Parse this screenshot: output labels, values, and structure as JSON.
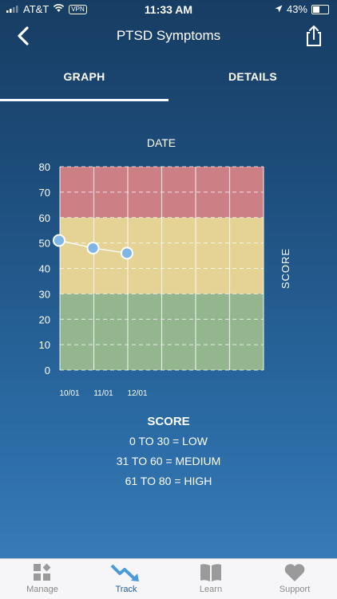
{
  "status": {
    "carrier": "AT&T",
    "vpn": "VPN",
    "time": "11:33 AM",
    "battery": "43%"
  },
  "header": {
    "title": "PTSD Symptoms"
  },
  "tabs": [
    {
      "label": "GRAPH",
      "active": true
    },
    {
      "label": "DETAILS",
      "active": false
    }
  ],
  "chart_data": {
    "type": "line",
    "title": "DATE",
    "ylabel": "SCORE",
    "ylim": [
      0,
      80
    ],
    "yticks": [
      0,
      10,
      20,
      30,
      40,
      50,
      60,
      70,
      80
    ],
    "x_labels": [
      "10/01",
      "11/01",
      "12/01"
    ],
    "series": [
      {
        "values": [
          51,
          48,
          46
        ]
      }
    ],
    "bands": [
      {
        "from": 0,
        "to": 30,
        "color": "#94b68f"
      },
      {
        "from": 30,
        "to": 60,
        "color": "#e4d394"
      },
      {
        "from": 60,
        "to": 80,
        "color": "#cc7f85"
      }
    ]
  },
  "legend": {
    "title": "SCORE",
    "rows": [
      "0 TO 30 = LOW",
      "31 TO 60 = MEDIUM",
      "61 TO 80 = HIGH"
    ]
  },
  "tabbar": [
    {
      "label": "Manage",
      "icon": "manage-icon",
      "active": false
    },
    {
      "label": "Track",
      "icon": "track-icon",
      "active": true
    },
    {
      "label": "Learn",
      "icon": "learn-icon",
      "active": false
    },
    {
      "label": "Support",
      "icon": "support-icon",
      "active": false
    }
  ]
}
